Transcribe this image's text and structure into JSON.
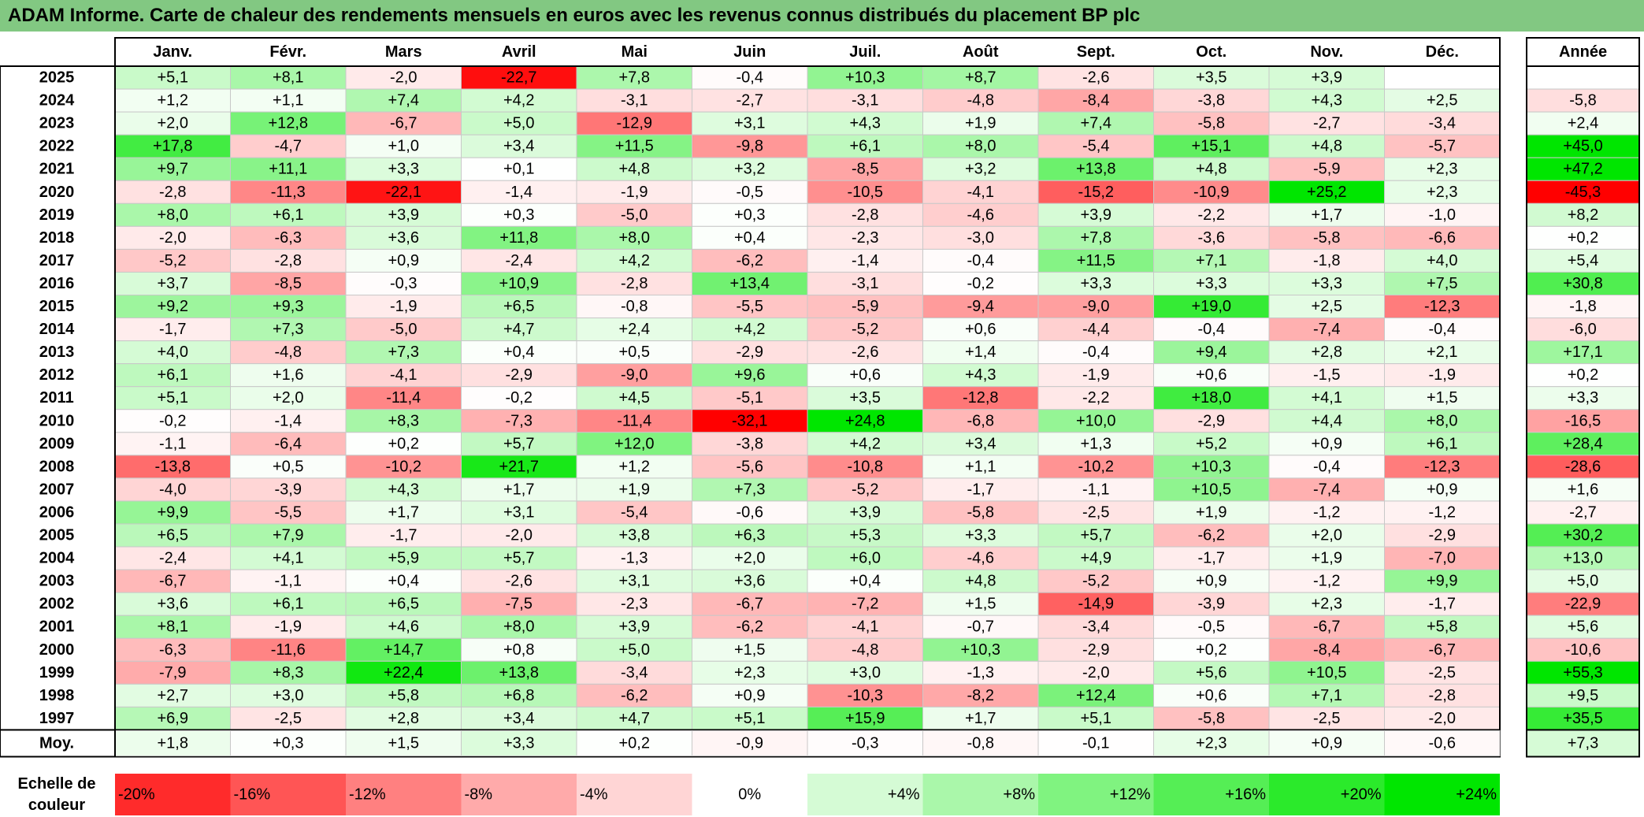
{
  "title": "ADAM Informe. Carte de chaleur des rendements mensuels en euros avec les revenus connus distribués du placement BP plc",
  "chart_data": {
    "type": "heatmap",
    "months": [
      "Janv.",
      "Févr.",
      "Mars",
      "Avril",
      "Mai",
      "Juin",
      "Juil.",
      "Août",
      "Sept.",
      "Oct.",
      "Nov.",
      "Déc."
    ],
    "year_header": "Année",
    "rows": [
      {
        "year": "2025",
        "values": [
          "+5,1",
          "+8,1",
          "-2,0",
          "-22,7",
          "+7,8",
          "-0,4",
          "+10,3",
          "+8,7",
          "-2,6",
          "+3,5",
          "+3,9",
          ""
        ],
        "annual": ""
      },
      {
        "year": "2024",
        "values": [
          "+1,2",
          "+1,1",
          "+7,4",
          "+4,2",
          "-3,1",
          "-2,7",
          "-3,1",
          "-4,8",
          "-8,4",
          "-3,8",
          "+4,3",
          "+2,5"
        ],
        "annual": "-5,8"
      },
      {
        "year": "2023",
        "values": [
          "+2,0",
          "+12,8",
          "-6,7",
          "+5,0",
          "-12,9",
          "+3,1",
          "+4,3",
          "+1,9",
          "+7,4",
          "-5,8",
          "-2,7",
          "-3,4"
        ],
        "annual": "+2,4"
      },
      {
        "year": "2022",
        "values": [
          "+17,8",
          "-4,7",
          "+1,0",
          "+3,4",
          "+11,5",
          "-9,8",
          "+6,1",
          "+8,0",
          "-5,4",
          "+15,1",
          "+4,8",
          "-5,7"
        ],
        "annual": "+45,0"
      },
      {
        "year": "2021",
        "values": [
          "+9,7",
          "+11,1",
          "+3,3",
          "+0,1",
          "+4,8",
          "+3,2",
          "-8,5",
          "+3,2",
          "+13,8",
          "+4,8",
          "-5,9",
          "+2,3"
        ],
        "annual": "+47,2"
      },
      {
        "year": "2020",
        "values": [
          "-2,8",
          "-11,3",
          "-22,1",
          "-1,4",
          "-1,9",
          "-0,5",
          "-10,5",
          "-4,1",
          "-15,2",
          "-10,9",
          "+25,2",
          "+2,3"
        ],
        "annual": "-45,3"
      },
      {
        "year": "2019",
        "values": [
          "+8,0",
          "+6,1",
          "+3,9",
          "+0,3",
          "-5,0",
          "+0,3",
          "-2,8",
          "-4,6",
          "+3,9",
          "-2,2",
          "+1,7",
          "-1,0"
        ],
        "annual": "+8,2"
      },
      {
        "year": "2018",
        "values": [
          "-2,0",
          "-6,3",
          "+3,6",
          "+11,8",
          "+8,0",
          "+0,4",
          "-2,3",
          "-3,0",
          "+7,8",
          "-3,6",
          "-5,8",
          "-6,6"
        ],
        "annual": "+0,2"
      },
      {
        "year": "2017",
        "values": [
          "-5,2",
          "-2,8",
          "+0,9",
          "-2,4",
          "+4,2",
          "-6,2",
          "-1,4",
          "-0,4",
          "+11,5",
          "+7,1",
          "-1,8",
          "+4,0"
        ],
        "annual": "+5,4"
      },
      {
        "year": "2016",
        "values": [
          "+3,7",
          "-8,5",
          "-0,3",
          "+10,9",
          "-2,8",
          "+13,4",
          "-3,1",
          "-0,2",
          "+3,3",
          "+3,3",
          "+3,3",
          "+7,5"
        ],
        "annual": "+30,8"
      },
      {
        "year": "2015",
        "values": [
          "+9,2",
          "+9,3",
          "-1,9",
          "+6,5",
          "-0,8",
          "-5,5",
          "-5,9",
          "-9,4",
          "-9,0",
          "+19,0",
          "+2,5",
          "-12,3"
        ],
        "annual": "-1,8"
      },
      {
        "year": "2014",
        "values": [
          "-1,7",
          "+7,3",
          "-5,0",
          "+4,7",
          "+2,4",
          "+4,2",
          "-5,2",
          "+0,6",
          "-4,4",
          "-0,4",
          "-7,4",
          "-0,4"
        ],
        "annual": "-6,0"
      },
      {
        "year": "2013",
        "values": [
          "+4,0",
          "-4,8",
          "+7,3",
          "+0,4",
          "+0,5",
          "-2,9",
          "-2,6",
          "+1,4",
          "-0,4",
          "+9,4",
          "+2,8",
          "+2,1"
        ],
        "annual": "+17,1"
      },
      {
        "year": "2012",
        "values": [
          "+6,1",
          "+1,6",
          "-4,1",
          "-2,9",
          "-9,0",
          "+9,6",
          "+0,6",
          "+4,3",
          "-1,9",
          "+0,6",
          "-1,5",
          "-1,9"
        ],
        "annual": "+0,2"
      },
      {
        "year": "2011",
        "values": [
          "+5,1",
          "+2,0",
          "-11,4",
          "-0,2",
          "+4,5",
          "-5,1",
          "+3,5",
          "-12,8",
          "-2,2",
          "+18,0",
          "+4,1",
          "+1,5"
        ],
        "annual": "+3,3"
      },
      {
        "year": "2010",
        "values": [
          "-0,2",
          "-1,4",
          "+8,3",
          "-7,3",
          "-11,4",
          "-32,1",
          "+24,8",
          "-6,8",
          "+10,0",
          "-2,9",
          "+4,4",
          "+8,0"
        ],
        "annual": "-16,5"
      },
      {
        "year": "2009",
        "values": [
          "-1,1",
          "-6,4",
          "+0,2",
          "+5,7",
          "+12,0",
          "-3,8",
          "+4,2",
          "+3,4",
          "+1,3",
          "+5,2",
          "+0,9",
          "+6,1"
        ],
        "annual": "+28,4"
      },
      {
        "year": "2008",
        "values": [
          "-13,8",
          "+0,5",
          "-10,2",
          "+21,7",
          "+1,2",
          "-5,6",
          "-10,8",
          "+1,1",
          "-10,2",
          "+10,3",
          "-0,4",
          "-12,3"
        ],
        "annual": "-28,6"
      },
      {
        "year": "2007",
        "values": [
          "-4,0",
          "-3,9",
          "+4,3",
          "+1,7",
          "+1,9",
          "+7,3",
          "-5,2",
          "-1,7",
          "-1,1",
          "+10,5",
          "-7,4",
          "+0,9"
        ],
        "annual": "+1,6"
      },
      {
        "year": "2006",
        "values": [
          "+9,9",
          "-5,5",
          "+1,7",
          "+3,1",
          "-5,4",
          "-0,6",
          "+3,9",
          "-5,8",
          "-2,5",
          "+1,9",
          "-1,2",
          "-1,2"
        ],
        "annual": "-2,7"
      },
      {
        "year": "2005",
        "values": [
          "+6,5",
          "+7,9",
          "-1,7",
          "-2,0",
          "+3,8",
          "+6,3",
          "+5,3",
          "+3,3",
          "+5,7",
          "-6,2",
          "+2,0",
          "-2,9"
        ],
        "annual": "+30,2"
      },
      {
        "year": "2004",
        "values": [
          "-2,4",
          "+4,1",
          "+5,9",
          "+5,7",
          "-1,3",
          "+2,0",
          "+6,0",
          "-4,6",
          "+4,9",
          "-1,7",
          "+1,9",
          "-7,0"
        ],
        "annual": "+13,0"
      },
      {
        "year": "2003",
        "values": [
          "-6,7",
          "-1,1",
          "+0,4",
          "-2,6",
          "+3,1",
          "+3,6",
          "+0,4",
          "+4,8",
          "-5,2",
          "+0,9",
          "-1,2",
          "+9,9"
        ],
        "annual": "+5,0"
      },
      {
        "year": "2002",
        "values": [
          "+3,6",
          "+6,1",
          "+6,5",
          "-7,5",
          "-2,3",
          "-6,7",
          "-7,2",
          "+1,5",
          "-14,9",
          "-3,9",
          "+2,3",
          "-1,7"
        ],
        "annual": "-22,9"
      },
      {
        "year": "2001",
        "values": [
          "+8,1",
          "-1,9",
          "+4,6",
          "+8,0",
          "+3,9",
          "-6,2",
          "-4,1",
          "-0,7",
          "-3,4",
          "-0,5",
          "-6,7",
          "+5,8"
        ],
        "annual": "+5,6"
      },
      {
        "year": "2000",
        "values": [
          "-6,3",
          "-11,6",
          "+14,7",
          "+0,8",
          "+5,0",
          "+1,5",
          "-4,8",
          "+10,3",
          "-2,9",
          "+0,2",
          "-8,4",
          "-6,7"
        ],
        "annual": "-10,6"
      },
      {
        "year": "1999",
        "values": [
          "-7,9",
          "+8,3",
          "+22,4",
          "+13,8",
          "-3,4",
          "+2,3",
          "+3,0",
          "-1,3",
          "-2,0",
          "+5,6",
          "+10,5",
          "-2,5"
        ],
        "annual": "+55,3"
      },
      {
        "year": "1998",
        "values": [
          "+2,7",
          "+3,0",
          "+5,8",
          "+6,8",
          "-6,2",
          "+0,9",
          "-10,3",
          "-8,2",
          "+12,4",
          "+0,6",
          "+7,1",
          "-2,8"
        ],
        "annual": "+9,5"
      },
      {
        "year": "1997",
        "values": [
          "+6,9",
          "-2,5",
          "+2,8",
          "+3,4",
          "+4,7",
          "+5,1",
          "+15,9",
          "+1,7",
          "+5,1",
          "-5,8",
          "-2,5",
          "-2,0"
        ],
        "annual": "+35,5"
      }
    ],
    "average": {
      "label": "Moy.",
      "values": [
        "+1,8",
        "+0,3",
        "+1,5",
        "+3,3",
        "+0,2",
        "-0,9",
        "-0,3",
        "-0,8",
        "-0,1",
        "+2,3",
        "+0,9",
        "-0,6"
      ],
      "annual": "+7,3"
    },
    "scale": {
      "label_line1": "Echelle de",
      "label_line2": "couleur",
      "stops": [
        {
          "label": "-20%",
          "value": -20
        },
        {
          "label": "-16%",
          "value": -16
        },
        {
          "label": "-12%",
          "value": -12
        },
        {
          "label": "-8%",
          "value": -8
        },
        {
          "label": "-4%",
          "value": -4
        },
        {
          "label": "0%",
          "value": 0
        },
        {
          "label": "+4%",
          "value": 4
        },
        {
          "label": "+8%",
          "value": 8
        },
        {
          "label": "+12%",
          "value": 12
        },
        {
          "label": "+16%",
          "value": 16
        },
        {
          "label": "+20%",
          "value": 20
        },
        {
          "label": "+24%",
          "value": 24
        }
      ]
    },
    "colors": {
      "title_bg": "#82c882",
      "negative_max": "#ff0000",
      "neutral": "#ffffff",
      "positive_max": "#00e600",
      "grid": "#c8c8c8",
      "border": "#000000"
    }
  }
}
